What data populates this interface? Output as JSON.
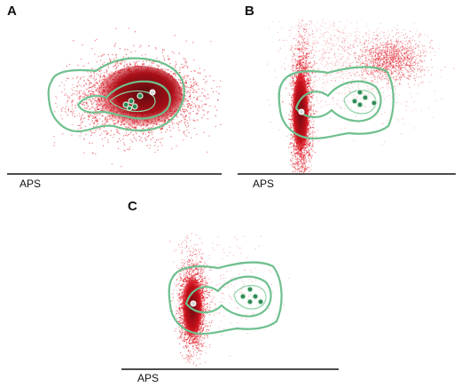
{
  "panels": [
    {
      "letter": "A",
      "axis_label": "APS"
    },
    {
      "letter": "B",
      "axis_label": "APS"
    },
    {
      "letter": "C",
      "axis_label": "APS"
    }
  ],
  "colors": {
    "events": "#e0101c",
    "events_dense": "#a00d16",
    "contour": "#6fc08e",
    "cluster": "#2f8a57",
    "axis": "#111111"
  }
}
